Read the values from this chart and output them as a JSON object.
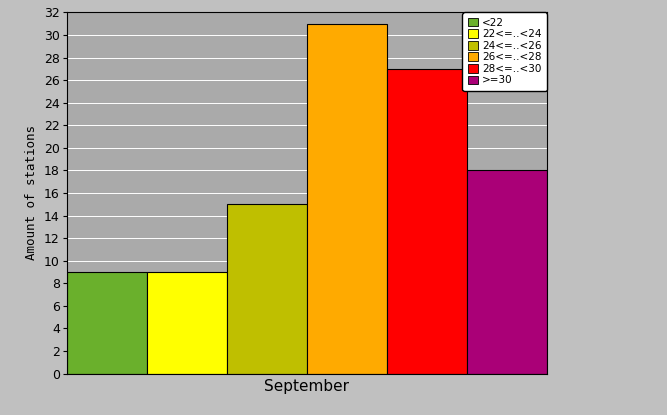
{
  "xlabel": "September",
  "ylabel": "Amount of stations",
  "ylim": [
    0,
    32
  ],
  "yticks": [
    0,
    2,
    4,
    6,
    8,
    10,
    12,
    14,
    16,
    18,
    20,
    22,
    24,
    26,
    28,
    30,
    32
  ],
  "bar_values": [
    9,
    9,
    15,
    31,
    27,
    18
  ],
  "bar_colors": [
    "#6ab02c",
    "#ffff00",
    "#bfbf00",
    "#ffaa00",
    "#ff0000",
    "#aa0077"
  ],
  "legend_labels": [
    "<22",
    "22<=..<24",
    "24<=..<26",
    "26<=..<28",
    "28<=..<30",
    ">=30"
  ],
  "legend_colors": [
    "#6ab02c",
    "#ffff00",
    "#bfbf00",
    "#ffaa00",
    "#ff0000",
    "#aa0077"
  ],
  "fig_background_color": "#c0c0c0",
  "plot_background_color": "#aaaaaa",
  "bar_width": 1.0,
  "figsize": [
    6.67,
    4.15
  ],
  "dpi": 100
}
